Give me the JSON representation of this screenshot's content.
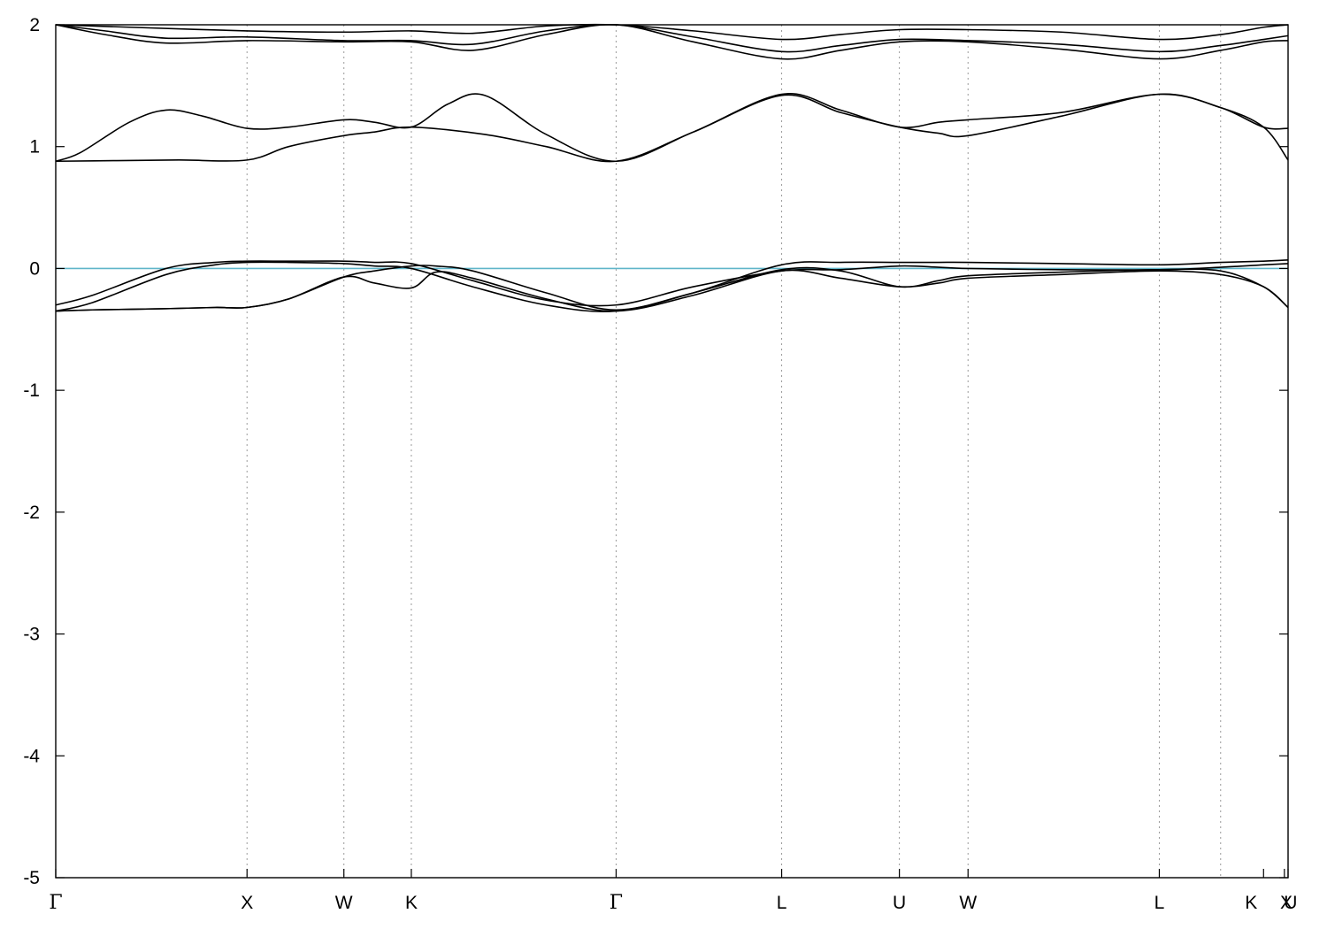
{
  "chart_data": {
    "type": "line",
    "title": "",
    "xlabel": "",
    "ylabel": "",
    "ylim": [
      -5,
      2
    ],
    "xlim": [
      0,
      10.05
    ],
    "y_ticks": [
      {
        "value": 2,
        "label": "2"
      },
      {
        "value": 1,
        "label": "1"
      },
      {
        "value": 0,
        "label": "0"
      },
      {
        "value": -1,
        "label": "-1"
      },
      {
        "value": -2,
        "label": "-2"
      },
      {
        "value": -3,
        "label": "-3"
      },
      {
        "value": -4,
        "label": "-4"
      },
      {
        "value": -5,
        "label": "-5"
      }
    ],
    "k_points": [
      {
        "label": "Γ",
        "x": 0.0
      },
      {
        "label": "X",
        "x": 1.56
      },
      {
        "label": "W",
        "x": 2.35
      },
      {
        "label": "K",
        "x": 2.9
      },
      {
        "label": "Γ",
        "x": 4.57
      },
      {
        "label": "L",
        "x": 5.92
      },
      {
        "label": "U",
        "x": 6.88
      },
      {
        "label": "W",
        "x": 7.44
      },
      {
        "label": "L",
        "x": 9.0
      },
      {
        "label": "K",
        "x": 9.85
      },
      {
        "label": "U",
        "x": 10.02
      },
      {
        "label": "X",
        "x": 10.05
      }
    ],
    "vlines_x": [
      1.56,
      2.35,
      2.9,
      4.57,
      5.92,
      6.88,
      7.44,
      9.0,
      9.5
    ],
    "grid": "dotted vertical lines at high-symmetry points",
    "fermi_level": {
      "y": 0,
      "color": "#5fb5c9"
    },
    "line_color": "#000000",
    "series": [
      {
        "x": [
          0,
          0.3,
          0.9,
          1.3,
          1.56,
          1.9,
          2.35,
          2.6,
          2.9,
          3.4,
          4.0,
          4.57,
          5.2,
          5.92,
          6.4,
          6.88,
          7.2,
          7.44,
          8.2,
          9.0,
          9.5,
          9.85,
          10.05
        ],
        "y": [
          -0.35,
          -0.28,
          -0.05,
          0.03,
          0.05,
          0.05,
          0.04,
          0.02,
          0.0,
          -0.15,
          -0.3,
          -0.35,
          -0.2,
          0.03,
          0.05,
          0.05,
          0.05,
          0.05,
          0.04,
          0.03,
          0.05,
          0.06,
          0.07
        ]
      },
      {
        "x": [
          0,
          0.3,
          0.9,
          1.3,
          1.56,
          1.9,
          2.35,
          2.6,
          2.9,
          3.4,
          4.0,
          4.57,
          5.2,
          5.92,
          6.4,
          6.88,
          7.2,
          7.44,
          8.2,
          9.0,
          9.5,
          9.85,
          10.05
        ],
        "y": [
          -0.3,
          -0.22,
          0.0,
          0.05,
          0.06,
          0.06,
          0.06,
          0.05,
          0.04,
          -0.1,
          -0.26,
          -0.3,
          -0.15,
          -0.02,
          -0.01,
          0.02,
          0.01,
          0.0,
          -0.01,
          -0.01,
          0.01,
          0.03,
          0.04
        ]
      },
      {
        "x": [
          0,
          0.3,
          0.9,
          1.3,
          1.56,
          1.9,
          2.35,
          2.6,
          2.9,
          3.1,
          3.4,
          4.0,
          4.57,
          5.2,
          5.92,
          6.4,
          6.88,
          7.2,
          7.44,
          8.2,
          9.0,
          9.5,
          9.85,
          10.05
        ],
        "y": [
          -0.35,
          -0.34,
          -0.33,
          -0.32,
          -0.32,
          -0.25,
          -0.07,
          -0.02,
          0.02,
          0.02,
          -0.02,
          -0.2,
          -0.34,
          -0.2,
          -0.01,
          -0.02,
          -0.15,
          -0.1,
          -0.06,
          -0.03,
          -0.01,
          -0.02,
          -0.15,
          -0.32
        ]
      },
      {
        "x": [
          0,
          0.3,
          0.9,
          1.3,
          1.56,
          1.9,
          2.35,
          2.6,
          2.9,
          3.1,
          3.4,
          4.0,
          4.57,
          5.2,
          5.92,
          6.4,
          6.88,
          7.2,
          7.44,
          8.2,
          9.0,
          9.5,
          9.85,
          10.05
        ],
        "y": [
          -0.35,
          -0.34,
          -0.33,
          -0.32,
          -0.32,
          -0.25,
          -0.07,
          -0.12,
          -0.16,
          -0.03,
          -0.08,
          -0.25,
          -0.35,
          -0.22,
          -0.02,
          -0.08,
          -0.15,
          -0.12,
          -0.08,
          -0.05,
          -0.02,
          -0.05,
          -0.15,
          -0.32
        ]
      },
      {
        "x": [
          0,
          0.2,
          0.6,
          0.9,
          1.2,
          1.56,
          1.9,
          2.35,
          2.6,
          2.9,
          3.2,
          3.5,
          4.0,
          4.57,
          5.2,
          5.92,
          6.4,
          6.88,
          7.2,
          7.44,
          8.2,
          9.0,
          9.5,
          9.85,
          10.05
        ],
        "y": [
          0.88,
          0.95,
          1.2,
          1.3,
          1.25,
          1.15,
          1.16,
          1.22,
          1.2,
          1.16,
          1.35,
          1.42,
          1.1,
          0.88,
          1.12,
          1.43,
          1.3,
          1.16,
          1.2,
          1.22,
          1.28,
          1.43,
          1.32,
          1.16,
          1.15
        ]
      },
      {
        "x": [
          0,
          0.5,
          1.0,
          1.56,
          1.9,
          2.35,
          2.6,
          2.9,
          3.5,
          4.0,
          4.57,
          5.2,
          5.92,
          6.4,
          6.88,
          7.2,
          7.44,
          8.2,
          9.0,
          9.5,
          9.85,
          10.05
        ],
        "y": [
          0.88,
          0.885,
          0.89,
          0.89,
          1.0,
          1.09,
          1.12,
          1.16,
          1.1,
          1.0,
          0.88,
          1.12,
          1.42,
          1.28,
          1.16,
          1.11,
          1.09,
          1.25,
          1.43,
          1.32,
          1.16,
          0.89
        ]
      },
      {
        "x": [
          0,
          0.4,
          0.9,
          1.56,
          2.35,
          2.9,
          3.4,
          4.0,
          4.57,
          5.2,
          5.92,
          6.4,
          6.88,
          7.44,
          8.2,
          9.0,
          9.5,
          9.85,
          10.05
        ],
        "y": [
          2.0,
          1.92,
          1.85,
          1.87,
          1.86,
          1.86,
          1.79,
          1.92,
          2.0,
          1.86,
          1.72,
          1.79,
          1.86,
          1.86,
          1.8,
          1.72,
          1.79,
          1.86,
          1.87
        ]
      },
      {
        "x": [
          0,
          0.4,
          0.9,
          1.56,
          2.35,
          2.9,
          3.4,
          4.0,
          4.57,
          5.2,
          5.92,
          6.4,
          6.88,
          7.44,
          8.2,
          9.0,
          9.5,
          9.85,
          10.05
        ],
        "y": [
          2.0,
          1.95,
          1.89,
          1.9,
          1.87,
          1.87,
          1.84,
          1.95,
          2.0,
          1.9,
          1.78,
          1.83,
          1.88,
          1.87,
          1.84,
          1.78,
          1.83,
          1.88,
          1.91
        ]
      },
      {
        "x": [
          0,
          0.6,
          1.56,
          2.35,
          2.9,
          3.4,
          4.0,
          4.57,
          5.2,
          5.92,
          6.4,
          6.88,
          7.44,
          8.2,
          9.0,
          9.5,
          9.85,
          10.05
        ],
        "y": [
          2.0,
          1.98,
          1.95,
          1.94,
          1.95,
          1.93,
          1.99,
          2.0,
          1.95,
          1.88,
          1.92,
          1.96,
          1.96,
          1.94,
          1.88,
          1.92,
          1.98,
          2.0
        ]
      }
    ]
  }
}
